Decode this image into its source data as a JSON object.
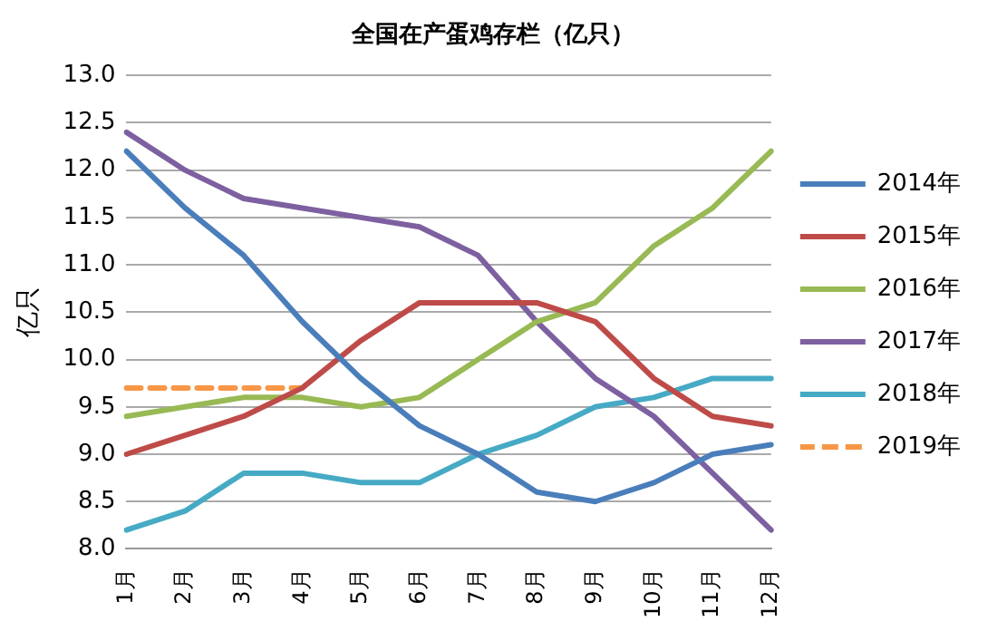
{
  "chart_data": {
    "type": "line",
    "title": "全国在产蛋鸡存栏（亿只）",
    "ylabel": "亿只",
    "categories": [
      "1月",
      "2月",
      "3月",
      "4月",
      "5月",
      "6月",
      "7月",
      "8月",
      "9月",
      "10月",
      "11月",
      "12月"
    ],
    "ylim": [
      8.0,
      13.0
    ],
    "yticks": [
      {
        "value": 8,
        "label": "8.0"
      },
      {
        "value": 8.5,
        "label": "8.5"
      },
      {
        "value": 9,
        "label": "9.0"
      },
      {
        "value": 9.5,
        "label": "9.5"
      },
      {
        "value": 10,
        "label": "10.0"
      },
      {
        "value": 10.5,
        "label": "10.5"
      },
      {
        "value": 11,
        "label": "11.0"
      },
      {
        "value": 11.5,
        "label": "11.5"
      },
      {
        "value": 12,
        "label": "12.0"
      },
      {
        "value": 12.5,
        "label": "12.5"
      },
      {
        "value": 13,
        "label": "13.0"
      }
    ],
    "grid": "y",
    "legend": "right",
    "marker": "none",
    "series": [
      {
        "name": "2014年",
        "color": "#4a7ebb",
        "values": [
          12.2,
          11.6,
          11.1,
          10.4,
          9.8,
          9.3,
          9.0,
          8.6,
          8.5,
          8.7,
          9.0,
          9.1
        ]
      },
      {
        "name": "2015年",
        "color": "#be4b48",
        "values": [
          9.0,
          9.2,
          9.4,
          9.7,
          10.2,
          10.6,
          10.6,
          10.6,
          10.4,
          9.8,
          9.4,
          9.3
        ]
      },
      {
        "name": "2016年",
        "color": "#98b954",
        "values": [
          9.4,
          9.5,
          9.6,
          9.6,
          9.5,
          9.6,
          10.0,
          10.4,
          10.6,
          11.2,
          11.6,
          12.2
        ]
      },
      {
        "name": "2017年",
        "color": "#7d60a0",
        "values": [
          12.4,
          12.0,
          11.7,
          11.6,
          11.5,
          11.4,
          11.1,
          10.4,
          9.8,
          9.4,
          8.8,
          8.2
        ]
      },
      {
        "name": "2018年",
        "color": "#46aac5",
        "values": [
          8.2,
          8.4,
          8.8,
          8.8,
          8.7,
          8.7,
          9.0,
          9.2,
          9.5,
          9.6,
          9.8,
          9.8
        ]
      },
      {
        "name": "2019年",
        "color": "#f79646",
        "line_style": "dashed",
        "values": [
          9.7,
          9.7,
          9.7,
          9.7,
          null,
          null,
          null,
          null,
          null,
          null,
          null,
          null
        ]
      }
    ]
  }
}
